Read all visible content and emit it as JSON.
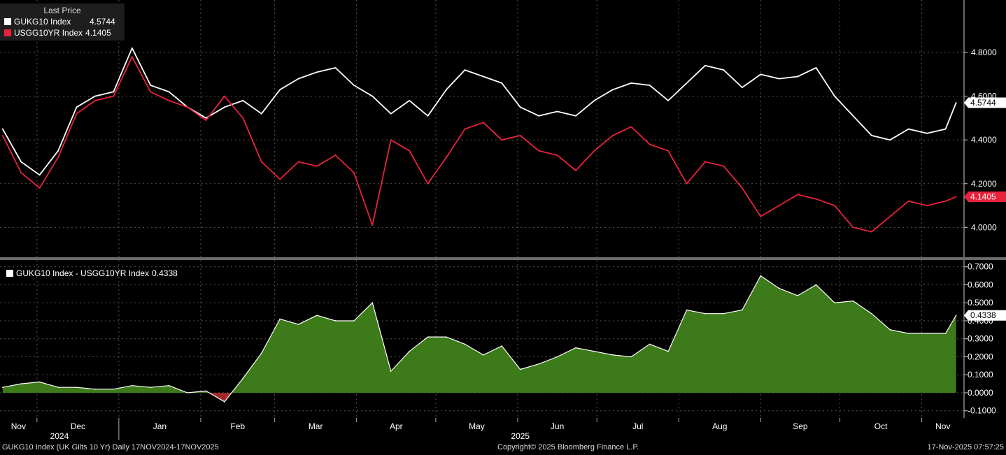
{
  "colors": {
    "background": "#000000",
    "uk": "#ffffff",
    "us": "#e8223c",
    "spread_pos": "#3d7a1a",
    "spread_neg": "#a02828",
    "grid": "#555555",
    "divider": "#6a6a6a"
  },
  "top_legend": {
    "header": "Last Price",
    "items": [
      {
        "label": "GUKG10 Index",
        "value": "4.5744"
      },
      {
        "label": "USGG10YR Index",
        "value": "4.1405"
      }
    ]
  },
  "bottom_legend": {
    "label": "GUKG10 Index - USGG10YR Index",
    "value": "0.4338"
  },
  "footer": {
    "left": "GUKG10 Index (UK Gilts 10 Yr) Daily 17NOV2024-17NOV2025",
    "center": "Copyright© 2025 Bloomberg Finance L.P.",
    "right": "17-Nov-2025 07:57:25"
  },
  "chart_data": [
    {
      "type": "line",
      "ylim": [
        3.87,
        5.04
      ],
      "y_ticks": [
        "4.0000",
        "4.2000",
        "4.4000",
        "4.6000",
        "4.8000"
      ],
      "last_value_tags": [
        "4.5744",
        "4.1405"
      ],
      "grid": true,
      "series": [
        {
          "name": "GUKG10 Index",
          "x": [
            "2024-11-18",
            "2024-11-25",
            "2024-12-02",
            "2024-12-09",
            "2024-12-16",
            "2024-12-23",
            "2024-12-30",
            "2025-01-06",
            "2025-01-13",
            "2025-01-20",
            "2025-01-27",
            "2025-02-03",
            "2025-02-10",
            "2025-02-17",
            "2025-02-24",
            "2025-03-03",
            "2025-03-10",
            "2025-03-17",
            "2025-03-24",
            "2025-03-31",
            "2025-04-07",
            "2025-04-14",
            "2025-04-21",
            "2025-04-28",
            "2025-05-05",
            "2025-05-12",
            "2025-05-19",
            "2025-05-26",
            "2025-06-02",
            "2025-06-09",
            "2025-06-16",
            "2025-06-23",
            "2025-06-30",
            "2025-07-07",
            "2025-07-14",
            "2025-07-21",
            "2025-07-28",
            "2025-08-04",
            "2025-08-11",
            "2025-08-18",
            "2025-08-25",
            "2025-09-01",
            "2025-09-08",
            "2025-09-15",
            "2025-09-22",
            "2025-09-29",
            "2025-10-06",
            "2025-10-13",
            "2025-10-20",
            "2025-10-27",
            "2025-11-03",
            "2025-11-10",
            "2025-11-14"
          ],
          "values": [
            4.45,
            4.3,
            4.24,
            4.35,
            4.55,
            4.6,
            4.62,
            4.82,
            4.65,
            4.62,
            4.55,
            4.5,
            4.55,
            4.58,
            4.52,
            4.63,
            4.68,
            4.71,
            4.73,
            4.65,
            4.6,
            4.52,
            4.58,
            4.51,
            4.63,
            4.72,
            4.69,
            4.66,
            4.55,
            4.51,
            4.53,
            4.51,
            4.58,
            4.63,
            4.66,
            4.65,
            4.58,
            4.66,
            4.74,
            4.72,
            4.64,
            4.7,
            4.68,
            4.69,
            4.73,
            4.6,
            4.51,
            4.42,
            4.4,
            4.45,
            4.43,
            4.45,
            4.57
          ]
        },
        {
          "name": "USGG10YR Index",
          "x": [
            "2024-11-18",
            "2024-11-25",
            "2024-12-02",
            "2024-12-09",
            "2024-12-16",
            "2024-12-23",
            "2024-12-30",
            "2025-01-06",
            "2025-01-13",
            "2025-01-20",
            "2025-01-27",
            "2025-02-03",
            "2025-02-10",
            "2025-02-17",
            "2025-02-24",
            "2025-03-03",
            "2025-03-10",
            "2025-03-17",
            "2025-03-24",
            "2025-03-31",
            "2025-04-07",
            "2025-04-14",
            "2025-04-21",
            "2025-04-28",
            "2025-05-05",
            "2025-05-12",
            "2025-05-19",
            "2025-05-26",
            "2025-06-02",
            "2025-06-09",
            "2025-06-16",
            "2025-06-23",
            "2025-06-30",
            "2025-07-07",
            "2025-07-14",
            "2025-07-21",
            "2025-07-28",
            "2025-08-04",
            "2025-08-11",
            "2025-08-18",
            "2025-08-25",
            "2025-09-01",
            "2025-09-08",
            "2025-09-15",
            "2025-09-22",
            "2025-09-29",
            "2025-10-06",
            "2025-10-13",
            "2025-10-20",
            "2025-10-27",
            "2025-11-03",
            "2025-11-10",
            "2025-11-14"
          ],
          "values": [
            4.42,
            4.25,
            4.18,
            4.32,
            4.52,
            4.58,
            4.6,
            4.78,
            4.62,
            4.58,
            4.55,
            4.49,
            4.6,
            4.5,
            4.3,
            4.22,
            4.3,
            4.28,
            4.33,
            4.25,
            4.01,
            4.4,
            4.35,
            4.2,
            4.32,
            4.45,
            4.48,
            4.4,
            4.42,
            4.35,
            4.33,
            4.26,
            4.35,
            4.42,
            4.46,
            4.38,
            4.35,
            4.2,
            4.3,
            4.28,
            4.18,
            4.05,
            4.1,
            4.15,
            4.13,
            4.1,
            4.0,
            3.98,
            4.05,
            4.12,
            4.1,
            4.12,
            4.14
          ]
        }
      ]
    },
    {
      "type": "area",
      "ylim": [
        -0.14,
        0.73
      ],
      "y_ticks": [
        "-0.1000",
        "0.0000",
        "0.1000",
        "0.2000",
        "0.3000",
        "0.4000",
        "0.5000",
        "0.6000",
        "0.7000"
      ],
      "last_value_tag": "0.4338",
      "grid": true,
      "x_tick_labels": [
        "Nov",
        "Dec",
        "Jan",
        "Feb",
        "Mar",
        "Apr",
        "May",
        "Jun",
        "Jul",
        "Aug",
        "Sep",
        "Oct",
        "Nov"
      ],
      "year_labels": [
        "2024",
        "2025"
      ],
      "series": [
        {
          "name": "GUKG10 Index - USGG10YR Index",
          "x": [
            "2024-11-18",
            "2024-11-25",
            "2024-12-02",
            "2024-12-09",
            "2024-12-16",
            "2024-12-23",
            "2024-12-30",
            "2025-01-06",
            "2025-01-13",
            "2025-01-20",
            "2025-01-27",
            "2025-02-03",
            "2025-02-10",
            "2025-02-17",
            "2025-02-24",
            "2025-03-03",
            "2025-03-10",
            "2025-03-17",
            "2025-03-24",
            "2025-03-31",
            "2025-04-07",
            "2025-04-14",
            "2025-04-21",
            "2025-04-28",
            "2025-05-05",
            "2025-05-12",
            "2025-05-19",
            "2025-05-26",
            "2025-06-02",
            "2025-06-09",
            "2025-06-16",
            "2025-06-23",
            "2025-06-30",
            "2025-07-07",
            "2025-07-14",
            "2025-07-21",
            "2025-07-28",
            "2025-08-04",
            "2025-08-11",
            "2025-08-18",
            "2025-08-25",
            "2025-09-01",
            "2025-09-08",
            "2025-09-15",
            "2025-09-22",
            "2025-09-29",
            "2025-10-06",
            "2025-10-13",
            "2025-10-20",
            "2025-10-27",
            "2025-11-03",
            "2025-11-10",
            "2025-11-14"
          ],
          "values": [
            0.03,
            0.05,
            0.06,
            0.03,
            0.03,
            0.02,
            0.02,
            0.04,
            0.03,
            0.04,
            0.0,
            0.01,
            -0.05,
            0.08,
            0.22,
            0.41,
            0.38,
            0.43,
            0.4,
            0.4,
            0.5,
            0.12,
            0.23,
            0.31,
            0.31,
            0.27,
            0.21,
            0.26,
            0.13,
            0.16,
            0.2,
            0.25,
            0.23,
            0.21,
            0.2,
            0.27,
            0.23,
            0.46,
            0.44,
            0.44,
            0.46,
            0.65,
            0.58,
            0.54,
            0.6,
            0.5,
            0.51,
            0.44,
            0.35,
            0.33,
            0.33,
            0.33,
            0.43
          ]
        }
      ]
    }
  ]
}
